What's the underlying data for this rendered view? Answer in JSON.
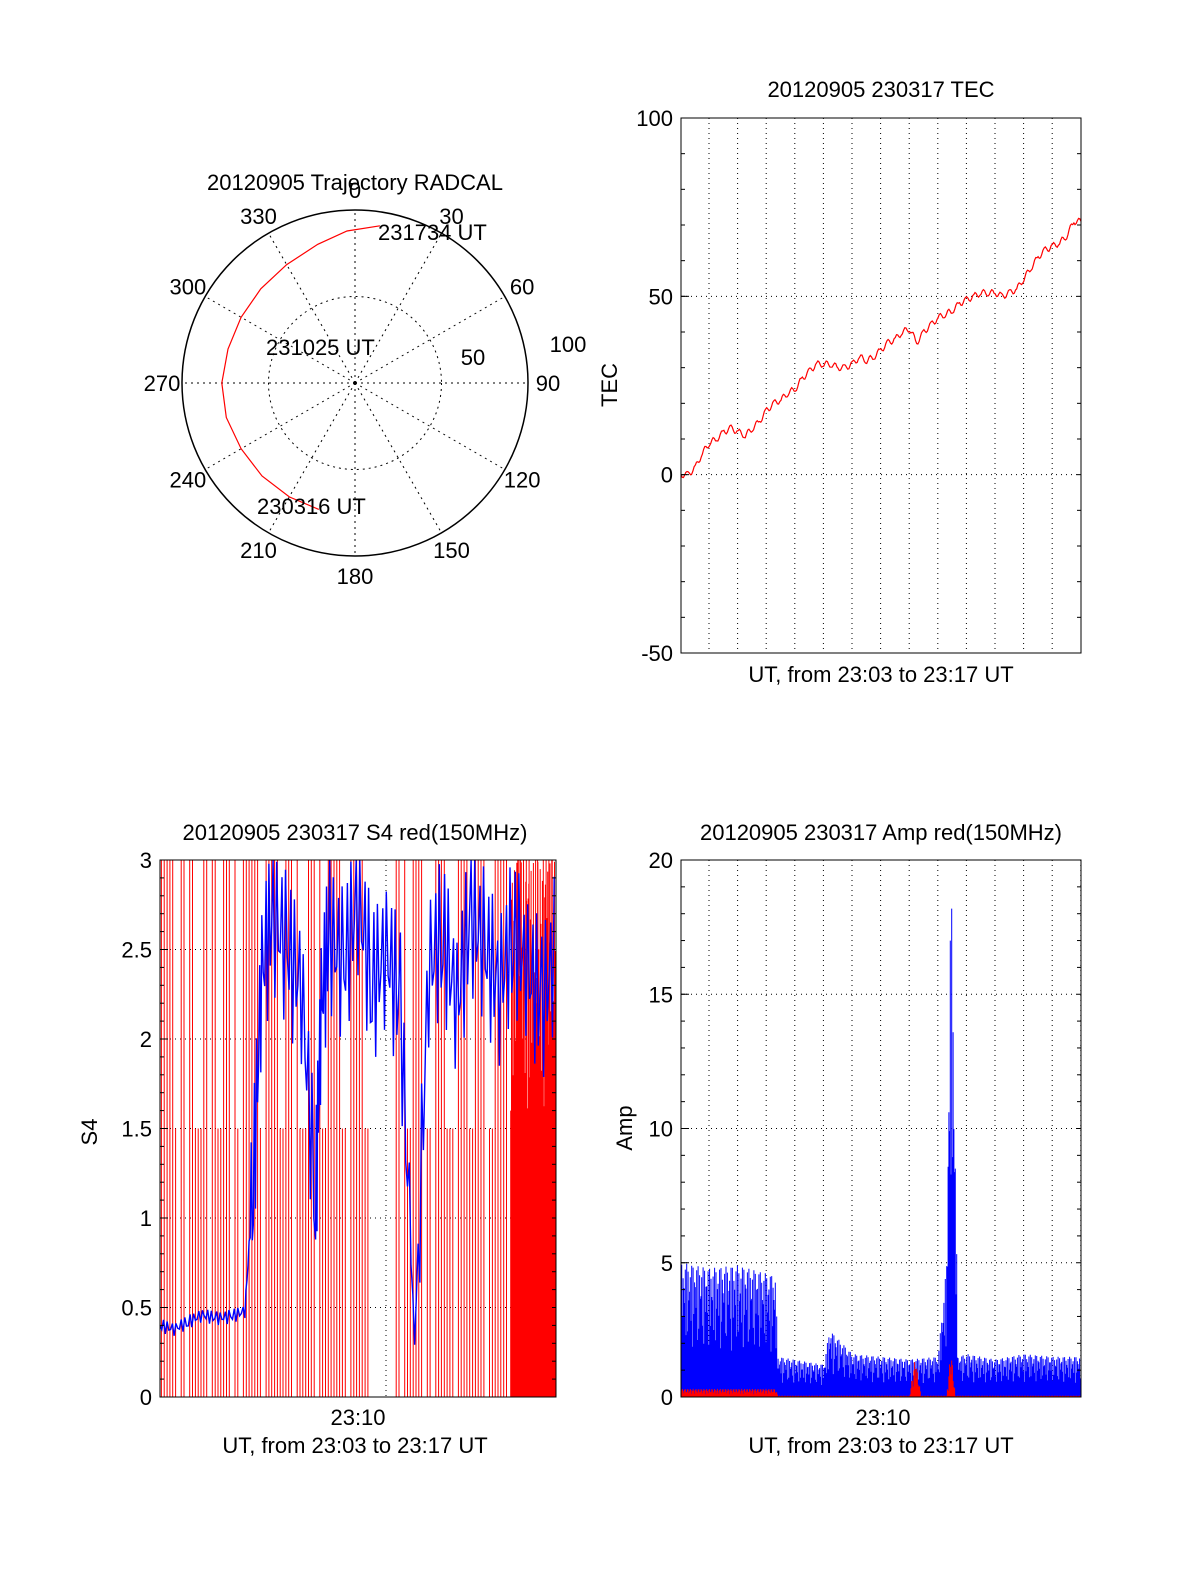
{
  "colors": {
    "red": "#ff0000",
    "blue": "#0000ff",
    "axis": "#000000",
    "grid": "#000000",
    "background": "#ffffff"
  },
  "chart_data": [
    {
      "id": "trajectory",
      "type": "scatter",
      "projection": "polar",
      "title": "20120905 Trajectory RADCAL",
      "azimuth_ticks": [
        "0",
        "30",
        "60",
        "90",
        "120",
        "150",
        "180",
        "210",
        "240",
        "270",
        "300",
        "330"
      ],
      "radial_ticks": [
        "50",
        "100"
      ],
      "grid": true,
      "series": [
        {
          "color": "red",
          "points": [
            {
              "azimuth": 196,
              "zenith": 76
            },
            {
              "azimuth": 210,
              "zenith": 76
            },
            {
              "azimuth": 225,
              "zenith": 76
            },
            {
              "azimuth": 240,
              "zenith": 76
            },
            {
              "azimuth": 255,
              "zenith": 77
            },
            {
              "azimuth": 270,
              "zenith": 77
            },
            {
              "azimuth": 285,
              "zenith": 76
            },
            {
              "azimuth": 300,
              "zenith": 76
            },
            {
              "azimuth": 315,
              "zenith": 77
            },
            {
              "azimuth": 330,
              "zenith": 79
            },
            {
              "azimuth": 345,
              "zenith": 83
            },
            {
              "azimuth": 357,
              "zenith": 88
            },
            {
              "azimuth": 9,
              "zenith": 92
            }
          ]
        }
      ],
      "annotations": [
        {
          "text": "231734 UT",
          "azimuth": 20,
          "zenith": 90
        },
        {
          "text": "231025 UT",
          "azimuth": 280,
          "zenith": 33
        },
        {
          "text": "230316 UT",
          "azimuth": 205,
          "zenith": 55
        }
      ]
    },
    {
      "id": "tec",
      "type": "line",
      "title": "20120905 230317 TEC",
      "xlabel": "UT, from 23:03 to 23:17 UT",
      "ylabel": "TEC",
      "xlim": [
        0,
        14
      ],
      "ylim": [
        -50,
        100
      ],
      "y_ticks": [
        -50,
        0,
        50,
        100
      ],
      "x_ticks": [],
      "grid": true,
      "series": [
        {
          "color": "red",
          "x": [
            0,
            0.25,
            0.5,
            0.75,
            1.0,
            1.25,
            1.5,
            1.75,
            2.0,
            2.25,
            2.5,
            2.75,
            3.0,
            3.25,
            3.5,
            3.75,
            4.0,
            4.25,
            4.5,
            4.75,
            5.0,
            5.25,
            5.5,
            5.75,
            6.0,
            6.25,
            6.5,
            6.75,
            7.0,
            7.25,
            7.5,
            7.75,
            8.0,
            8.25,
            8.5,
            8.75,
            9.0,
            9.25,
            9.5,
            9.75,
            10.0,
            10.25,
            10.5,
            10.75,
            11.0,
            11.25,
            11.5,
            11.75,
            12.0,
            12.25,
            12.5,
            12.75,
            13.0,
            13.25,
            13.5,
            13.75,
            14.0
          ],
          "y": [
            0,
            0,
            2,
            6,
            9,
            10,
            12,
            13,
            12,
            11,
            13,
            15,
            18,
            20,
            21,
            23,
            24,
            27,
            29,
            31,
            31,
            31,
            30,
            30,
            31,
            33,
            32,
            33,
            35,
            37,
            38,
            40,
            41,
            37,
            40,
            42,
            44,
            45,
            46,
            48,
            49,
            50,
            51,
            51,
            51,
            50,
            51,
            52,
            55,
            58,
            61,
            63,
            64,
            65,
            67,
            71,
            71
          ]
        }
      ]
    },
    {
      "id": "s4",
      "type": "line",
      "title": "20120905 230317 S4 red(150MHz)",
      "xlabel": "UT, from 23:03 to 23:17 UT",
      "ylabel": "S4",
      "xlim": [
        0,
        14
      ],
      "ylim": [
        0,
        3
      ],
      "y_ticks": [
        "0",
        "0.5",
        "1",
        "1.5",
        "2",
        "2.5",
        "3"
      ],
      "x_tick_labels": [
        {
          "x": 7,
          "label": "23:10"
        }
      ],
      "grid": true,
      "series": [
        {
          "color": "red",
          "description_of_values": "oscillates between 0 and 3 across the whole window (noisy)"
        },
        {
          "color": "blue",
          "x": [
            0,
            0.5,
            1.0,
            1.5,
            2.0,
            2.5,
            3.0,
            3.3,
            3.6,
            4.0,
            4.5,
            5.0,
            5.5,
            5.7,
            6.0,
            6.5,
            7.0,
            7.5,
            8.0,
            8.5,
            9.0,
            9.5,
            10.0,
            10.5,
            11.0,
            11.5,
            12.0,
            12.5,
            13.0,
            13.5,
            14.0
          ],
          "y": [
            0.4,
            0.38,
            0.42,
            0.46,
            0.44,
            0.45,
            0.48,
            1.2,
            2.4,
            2.7,
            2.5,
            2.3,
            1.1,
            2.2,
            2.6,
            2.4,
            2.8,
            2.3,
            2.5,
            2.2,
            0.3,
            2.4,
            2.6,
            2.2,
            2.7,
            2.5,
            2.3,
            2.6,
            2.4,
            2.2,
            2.5
          ]
        }
      ]
    },
    {
      "id": "amp",
      "type": "line",
      "title": "20120905 230317 Amp red(150MHz)",
      "xlabel": "UT, from 23:03 to 23:17 UT",
      "ylabel": "Amp",
      "xlim": [
        0,
        14
      ],
      "ylim": [
        0,
        20
      ],
      "y_ticks": [
        0,
        5,
        10,
        15,
        20
      ],
      "x_tick_labels": [
        {
          "x": 7,
          "label": "23:10"
        }
      ],
      "grid": true,
      "series": [
        {
          "color": "blue",
          "envelope": {
            "x": [
              0,
              1,
              2,
              3,
              3.3,
              3.4,
              5,
              5.2,
              6,
              7,
              8,
              9,
              9.3,
              9.45,
              9.55,
              9.7,
              10,
              11,
              12,
              13,
              14
            ],
            "upper": [
              5,
              4.8,
              4.9,
              4.6,
              4.5,
              1.5,
              1.2,
              2.5,
              1.6,
              1.5,
              1.4,
              1.5,
              5,
              20,
              13,
              1.5,
              1.6,
              1.4,
              1.6,
              1.5,
              1.5
            ]
          }
        },
        {
          "color": "red",
          "envelope": {
            "x": [
              0,
              3.3,
              3.4,
              8,
              8.2,
              8.4,
              9.3,
              9.45,
              9.6,
              14
            ],
            "upper": [
              0.3,
              0.3,
              0.05,
              0.05,
              1.5,
              0.05,
              0.05,
              1.8,
              0.05,
              0.05
            ]
          }
        }
      ]
    }
  ]
}
